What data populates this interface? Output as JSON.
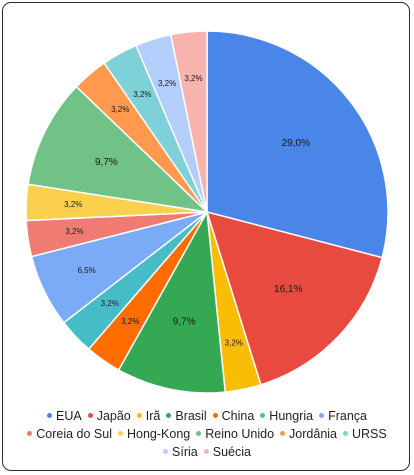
{
  "chart_data": {
    "type": "pie",
    "title": "",
    "categories": [
      "EUA",
      "Japão",
      "Irã",
      "Brasil",
      "China",
      "Hungria",
      "França",
      "Coreia do Sul",
      "Hong-Kong",
      "Reino Unido",
      "Jordânia",
      "URSS",
      "Síria",
      "Suécia"
    ],
    "values": [
      29.0,
      16.1,
      3.2,
      9.7,
      3.2,
      3.2,
      6.5,
      3.2,
      3.2,
      9.7,
      3.2,
      3.2,
      3.2,
      3.2
    ],
    "data_labels": [
      "29,0%",
      "16,1%",
      "3,2%",
      "9,7%",
      "3,2%",
      "3,2%",
      "6,5%",
      "3,2%",
      "3,2%",
      "9,7%",
      "3,2%",
      "3,2%",
      "3,2%",
      "3,2%"
    ],
    "colors": [
      "#4a86e8",
      "#e84a3f",
      "#fbbc04",
      "#34a853",
      "#ff6d01",
      "#46bdc6",
      "#7baaf7",
      "#f07b72",
      "#fcd04f",
      "#71c287",
      "#ff994d",
      "#7ed1d7",
      "#b3cefb",
      "#f7b4ae"
    ],
    "legend_position": "bottom"
  }
}
